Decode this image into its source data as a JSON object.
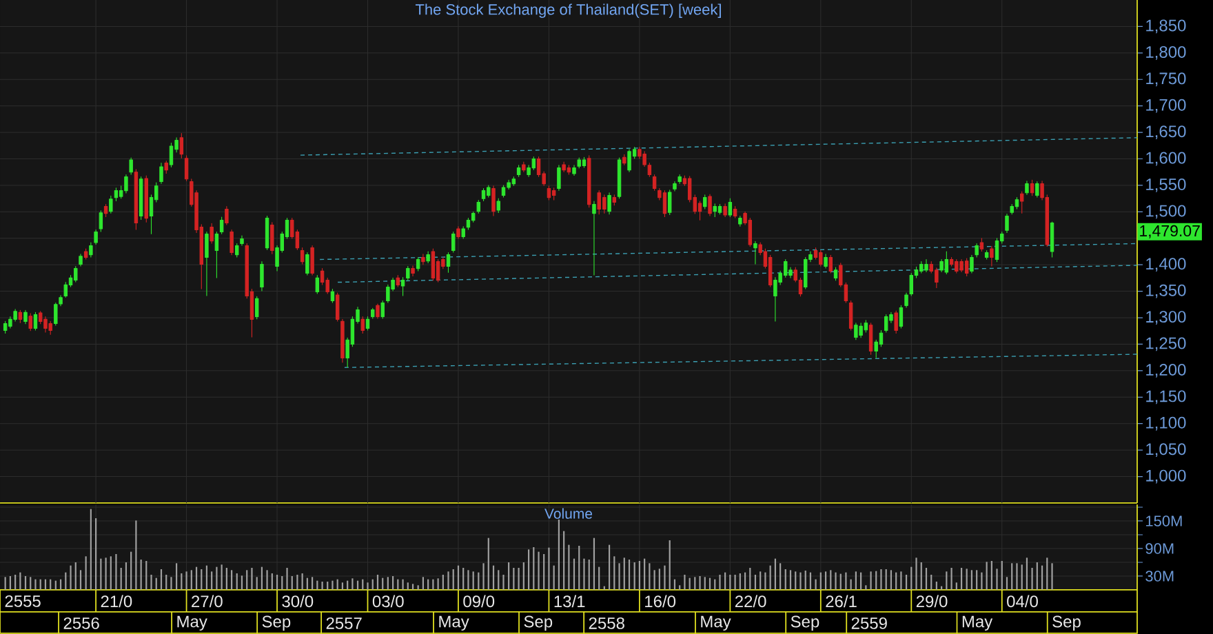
{
  "chart_data": [
    {
      "type": "candlestick",
      "title": "The Stock Exchange of Thailand(SET) [week]",
      "x": [
        2555.71,
        2555.729,
        2555.748,
        2555.767,
        2555.787,
        2555.806,
        2555.825,
        2555.844,
        2555.863,
        2555.882,
        2555.902,
        2555.921,
        2555.94,
        2555.959,
        2555.978,
        2555.997,
        2556.017,
        2556.036,
        2556.055,
        2556.074,
        2556.093,
        2556.112,
        2556.132,
        2556.151,
        2556.17,
        2556.189,
        2556.208,
        2556.227,
        2556.247,
        2556.266,
        2556.285,
        2556.304,
        2556.323,
        2556.342,
        2556.362,
        2556.381,
        2556.4,
        2556.419,
        2556.438,
        2556.457,
        2556.477,
        2556.496,
        2556.515,
        2556.534,
        2556.553,
        2556.572,
        2556.592,
        2556.611,
        2556.63,
        2556.649,
        2556.668,
        2556.687,
        2556.707,
        2556.726,
        2556.745,
        2556.764,
        2556.783,
        2556.802,
        2556.822,
        2556.841,
        2556.86,
        2556.879,
        2556.898,
        2556.917,
        2556.937,
        2556.956,
        2556.975,
        2556.994,
        2557.013,
        2557.032,
        2557.052,
        2557.071,
        2557.09,
        2557.109,
        2557.128,
        2557.147,
        2557.167,
        2557.186,
        2557.205,
        2557.224,
        2557.243,
        2557.262,
        2557.282,
        2557.301,
        2557.32,
        2557.339,
        2557.358,
        2557.377,
        2557.397,
        2557.416,
        2557.435,
        2557.454,
        2557.473,
        2557.492,
        2557.512,
        2557.531,
        2557.55,
        2557.569,
        2557.588,
        2557.607,
        2557.627,
        2557.646,
        2557.665,
        2557.684,
        2557.703,
        2557.722,
        2557.741,
        2557.761,
        2557.78,
        2557.799,
        2557.818,
        2557.837,
        2557.856,
        2557.876,
        2557.895,
        2557.914,
        2557.933,
        2557.952,
        2557.971,
        2557.991,
        2558.01,
        2558.029,
        2558.048,
        2558.067,
        2558.086,
        2558.106,
        2558.125,
        2558.144,
        2558.163,
        2558.182,
        2558.201,
        2558.221,
        2558.24,
        2558.259,
        2558.278,
        2558.297,
        2558.316,
        2558.336,
        2558.355,
        2558.374,
        2558.393,
        2558.412,
        2558.431,
        2558.451,
        2558.47,
        2558.489,
        2558.508,
        2558.527,
        2558.546,
        2558.566,
        2558.585,
        2558.604,
        2558.623,
        2558.642,
        2558.661,
        2558.681,
        2558.7,
        2558.719,
        2558.738,
        2558.757,
        2558.776,
        2558.796,
        2558.815,
        2558.834,
        2558.853,
        2558.872,
        2558.891,
        2558.911,
        2558.93,
        2558.949,
        2558.968,
        2558.987,
        2559.006,
        2559.026,
        2559.045,
        2559.064,
        2559.083,
        2559.102,
        2559.121,
        2559.141,
        2559.16,
        2559.179,
        2559.198,
        2559.217,
        2559.236,
        2559.256,
        2559.275,
        2559.294,
        2559.313,
        2559.332,
        2559.351,
        2559.371,
        2559.39,
        2559.409,
        2559.428,
        2559.447,
        2559.466,
        2559.486,
        2559.505,
        2559.524,
        2559.543,
        2559.562,
        2559.581,
        2559.6,
        2559.62,
        2559.639,
        2559.658,
        2559.677,
        2559.696
      ],
      "ohlc": [
        [
          1276,
          1293,
          1270,
          1289
        ],
        [
          1284,
          1302,
          1280,
          1297
        ],
        [
          1297,
          1316,
          1293,
          1312
        ],
        [
          1310,
          1314,
          1290,
          1297
        ],
        [
          1293,
          1314,
          1288,
          1310
        ],
        [
          1303,
          1308,
          1275,
          1280
        ],
        [
          1280,
          1310,
          1276,
          1306
        ],
        [
          1309,
          1312,
          1288,
          1293
        ],
        [
          1297,
          1302,
          1272,
          1280
        ],
        [
          1289,
          1293,
          1268,
          1276
        ],
        [
          1289,
          1328,
          1285,
          1325
        ],
        [
          1326,
          1342,
          1322,
          1338
        ],
        [
          1341,
          1367,
          1338,
          1362
        ],
        [
          1362,
          1380,
          1358,
          1375
        ],
        [
          1371,
          1397,
          1367,
          1393
        ],
        [
          1401,
          1420,
          1397,
          1416
        ],
        [
          1425,
          1430,
          1410,
          1414
        ],
        [
          1419,
          1442,
          1414,
          1436
        ],
        [
          1442,
          1466,
          1438,
          1462
        ],
        [
          1468,
          1502,
          1462,
          1498
        ],
        [
          1510,
          1514,
          1490,
          1497
        ],
        [
          1501,
          1530,
          1497,
          1524
        ],
        [
          1527,
          1545,
          1520,
          1540
        ],
        [
          1529,
          1549,
          1525,
          1540
        ],
        [
          1540,
          1570,
          1535,
          1566
        ],
        [
          1575,
          1602,
          1570,
          1598
        ],
        [
          1575,
          1580,
          1466,
          1479
        ],
        [
          1492,
          1566,
          1485,
          1562
        ],
        [
          1563,
          1568,
          1480,
          1488
        ],
        [
          1492,
          1532,
          1458,
          1527
        ],
        [
          1523,
          1555,
          1518,
          1549
        ],
        [
          1557,
          1592,
          1553,
          1585
        ],
        [
          1592,
          1596,
          1572,
          1579
        ],
        [
          1589,
          1630,
          1584,
          1624
        ],
        [
          1618,
          1640,
          1612,
          1635
        ],
        [
          1640,
          1648,
          1601,
          1609
        ],
        [
          1601,
          1606,
          1558,
          1562
        ],
        [
          1557,
          1562,
          1510,
          1514
        ],
        [
          1536,
          1540,
          1460,
          1466
        ],
        [
          1471,
          1476,
          1354,
          1401
        ],
        [
          1414,
          1462,
          1341,
          1458
        ],
        [
          1471,
          1478,
          1440,
          1445
        ],
        [
          1427,
          1462,
          1375,
          1458
        ],
        [
          1462,
          1490,
          1458,
          1484
        ],
        [
          1505,
          1510,
          1475,
          1479
        ],
        [
          1462,
          1466,
          1418,
          1423
        ],
        [
          1419,
          1440,
          1414,
          1436
        ],
        [
          1440,
          1455,
          1436,
          1449
        ],
        [
          1436,
          1440,
          1336,
          1341
        ],
        [
          1349,
          1354,
          1263,
          1297
        ],
        [
          1302,
          1340,
          1297,
          1336
        ],
        [
          1358,
          1406,
          1350,
          1401
        ],
        [
          1432,
          1492,
          1428,
          1488
        ],
        [
          1475,
          1480,
          1420,
          1427
        ],
        [
          1397,
          1436,
          1388,
          1432
        ],
        [
          1427,
          1462,
          1423,
          1458
        ],
        [
          1453,
          1488,
          1449,
          1484
        ],
        [
          1484,
          1488,
          1449,
          1453
        ],
        [
          1462,
          1466,
          1428,
          1432
        ],
        [
          1427,
          1432,
          1401,
          1406
        ],
        [
          1384,
          1423,
          1380,
          1419
        ],
        [
          1432,
          1436,
          1380,
          1384
        ],
        [
          1349,
          1380,
          1345,
          1375
        ],
        [
          1388,
          1393,
          1362,
          1367
        ],
        [
          1371,
          1375,
          1345,
          1349
        ],
        [
          1332,
          1354,
          1328,
          1349
        ],
        [
          1343,
          1347,
          1293,
          1297
        ],
        [
          1293,
          1297,
          1215,
          1224
        ],
        [
          1224,
          1262,
          1206,
          1258
        ],
        [
          1250,
          1302,
          1245,
          1297
        ],
        [
          1293,
          1320,
          1289,
          1315
        ],
        [
          1297,
          1302,
          1270,
          1276
        ],
        [
          1280,
          1302,
          1276,
          1297
        ],
        [
          1302,
          1318,
          1298,
          1315
        ],
        [
          1323,
          1326,
          1298,
          1302
        ],
        [
          1302,
          1332,
          1298,
          1328
        ],
        [
          1332,
          1362,
          1328,
          1358
        ],
        [
          1354,
          1375,
          1350,
          1371
        ],
        [
          1375,
          1380,
          1358,
          1362
        ],
        [
          1360,
          1376,
          1341,
          1371
        ],
        [
          1375,
          1397,
          1370,
          1393
        ],
        [
          1393,
          1398,
          1378,
          1384
        ],
        [
          1393,
          1414,
          1388,
          1410
        ],
        [
          1414,
          1420,
          1400,
          1406
        ],
        [
          1407,
          1425,
          1403,
          1419
        ],
        [
          1425,
          1430,
          1370,
          1375
        ],
        [
          1406,
          1410,
          1367,
          1371
        ],
        [
          1410,
          1414,
          1392,
          1397
        ],
        [
          1397,
          1423,
          1385,
          1419
        ],
        [
          1427,
          1462,
          1423,
          1458
        ],
        [
          1468,
          1472,
          1449,
          1453
        ],
        [
          1453,
          1472,
          1449,
          1468
        ],
        [
          1471,
          1488,
          1466,
          1484
        ],
        [
          1484,
          1500,
          1480,
          1497
        ],
        [
          1501,
          1522,
          1497,
          1518
        ],
        [
          1525,
          1544,
          1520,
          1540
        ],
        [
          1531,
          1550,
          1527,
          1546
        ],
        [
          1544,
          1549,
          1492,
          1501
        ],
        [
          1503,
          1525,
          1498,
          1520
        ],
        [
          1531,
          1550,
          1527,
          1546
        ],
        [
          1546,
          1560,
          1542,
          1555
        ],
        [
          1553,
          1566,
          1549,
          1562
        ],
        [
          1570,
          1588,
          1566,
          1583
        ],
        [
          1589,
          1594,
          1575,
          1579
        ],
        [
          1570,
          1588,
          1566,
          1583
        ],
        [
          1583,
          1604,
          1579,
          1600
        ],
        [
          1600,
          1604,
          1566,
          1570
        ],
        [
          1572,
          1576,
          1549,
          1553
        ],
        [
          1544,
          1549,
          1522,
          1527
        ],
        [
          1540,
          1545,
          1522,
          1531
        ],
        [
          1544,
          1588,
          1540,
          1583
        ],
        [
          1589,
          1594,
          1575,
          1579
        ],
        [
          1583,
          1588,
          1570,
          1575
        ],
        [
          1572,
          1588,
          1568,
          1583
        ],
        [
          1586,
          1602,
          1582,
          1598
        ],
        [
          1587,
          1603,
          1583,
          1598
        ],
        [
          1601,
          1606,
          1508,
          1514
        ],
        [
          1497,
          1520,
          1380,
          1514
        ],
        [
          1536,
          1540,
          1495,
          1505
        ],
        [
          1527,
          1532,
          1497,
          1505
        ],
        [
          1501,
          1536,
          1495,
          1531
        ],
        [
          1527,
          1532,
          1512,
          1518
        ],
        [
          1529,
          1602,
          1525,
          1598
        ],
        [
          1603,
          1608,
          1588,
          1592
        ],
        [
          1579,
          1618,
          1575,
          1614
        ],
        [
          1605,
          1622,
          1600,
          1618
        ],
        [
          1618,
          1622,
          1600,
          1605
        ],
        [
          1609,
          1614,
          1585,
          1589
        ],
        [
          1588,
          1592,
          1566,
          1570
        ],
        [
          1566,
          1570,
          1540,
          1544
        ],
        [
          1540,
          1544,
          1522,
          1527
        ],
        [
          1536,
          1540,
          1490,
          1497
        ],
        [
          1499,
          1541,
          1494,
          1537
        ],
        [
          1543,
          1557,
          1539,
          1553
        ],
        [
          1557,
          1570,
          1553,
          1566
        ],
        [
          1563,
          1568,
          1549,
          1553
        ],
        [
          1563,
          1567,
          1518,
          1523
        ],
        [
          1527,
          1532,
          1496,
          1501
        ],
        [
          1516,
          1520,
          1484,
          1501
        ],
        [
          1510,
          1532,
          1505,
          1527
        ],
        [
          1529,
          1533,
          1492,
          1497
        ],
        [
          1501,
          1515,
          1490,
          1510
        ],
        [
          1499,
          1514,
          1495,
          1510
        ],
        [
          1510,
          1515,
          1490,
          1494
        ],
        [
          1494,
          1525,
          1490,
          1518
        ],
        [
          1505,
          1510,
          1488,
          1492
        ],
        [
          1477,
          1492,
          1472,
          1488
        ],
        [
          1497,
          1500,
          1475,
          1479
        ],
        [
          1484,
          1488,
          1434,
          1438
        ],
        [
          1432,
          1444,
          1401,
          1440
        ],
        [
          1438,
          1442,
          1418,
          1423
        ],
        [
          1425,
          1430,
          1393,
          1397
        ],
        [
          1414,
          1418,
          1358,
          1362
        ],
        [
          1341,
          1376,
          1293,
          1371
        ],
        [
          1367,
          1388,
          1362,
          1384
        ],
        [
          1380,
          1410,
          1376,
          1406
        ],
        [
          1380,
          1395,
          1375,
          1390
        ],
        [
          1390,
          1395,
          1367,
          1371
        ],
        [
          1371,
          1375,
          1340,
          1345
        ],
        [
          1358,
          1414,
          1354,
          1410
        ],
        [
          1410,
          1425,
          1405,
          1419
        ],
        [
          1427,
          1432,
          1410,
          1414
        ],
        [
          1423,
          1427,
          1397,
          1401
        ],
        [
          1397,
          1420,
          1393,
          1414
        ],
        [
          1414,
          1418,
          1384,
          1388
        ],
        [
          1375,
          1395,
          1370,
          1390
        ],
        [
          1399,
          1403,
          1358,
          1362
        ],
        [
          1362,
          1366,
          1328,
          1332
        ],
        [
          1328,
          1332,
          1276,
          1280
        ],
        [
          1263,
          1290,
          1258,
          1286
        ],
        [
          1267,
          1290,
          1262,
          1284
        ],
        [
          1277,
          1295,
          1272,
          1290
        ],
        [
          1286,
          1290,
          1230,
          1237
        ],
        [
          1237,
          1258,
          1224,
          1254
        ],
        [
          1250,
          1276,
          1245,
          1271
        ],
        [
          1276,
          1306,
          1272,
          1302
        ],
        [
          1295,
          1310,
          1290,
          1306
        ],
        [
          1309,
          1313,
          1270,
          1276
        ],
        [
          1284,
          1323,
          1280,
          1319
        ],
        [
          1323,
          1347,
          1319,
          1343
        ],
        [
          1345,
          1384,
          1341,
          1380
        ],
        [
          1380,
          1396,
          1375,
          1390
        ],
        [
          1388,
          1406,
          1384,
          1401
        ],
        [
          1390,
          1410,
          1386,
          1401
        ],
        [
          1401,
          1406,
          1384,
          1388
        ],
        [
          1390,
          1394,
          1356,
          1367
        ],
        [
          1390,
          1410,
          1386,
          1406
        ],
        [
          1386,
          1425,
          1382,
          1410
        ],
        [
          1410,
          1414,
          1397,
          1401
        ],
        [
          1406,
          1410,
          1384,
          1388
        ],
        [
          1406,
          1410,
          1386,
          1390
        ],
        [
          1407,
          1412,
          1378,
          1384
        ],
        [
          1388,
          1418,
          1384,
          1414
        ],
        [
          1419,
          1440,
          1414,
          1436
        ],
        [
          1442,
          1450,
          1425,
          1430
        ],
        [
          1414,
          1427,
          1410,
          1423
        ],
        [
          1430,
          1435,
          1397,
          1414
        ],
        [
          1410,
          1450,
          1405,
          1445
        ],
        [
          1445,
          1462,
          1440,
          1458
        ],
        [
          1465,
          1496,
          1460,
          1492
        ],
        [
          1499,
          1514,
          1495,
          1510
        ],
        [
          1510,
          1527,
          1505,
          1523
        ],
        [
          1534,
          1538,
          1497,
          1520
        ],
        [
          1536,
          1558,
          1532,
          1553
        ],
        [
          1553,
          1560,
          1530,
          1536
        ],
        [
          1531,
          1557,
          1527,
          1553
        ],
        [
          1553,
          1558,
          1522,
          1527
        ],
        [
          1527,
          1532,
          1434,
          1438
        ],
        [
          1425,
          1481,
          1414,
          1479.07
        ]
      ],
      "colors": [
        "#2ee62e",
        "#2ee62e",
        "#2ee62e",
        "#d42323",
        "#2ee62e",
        "#d42323",
        "#2ee62e",
        "#d42323",
        "#d42323",
        "#d42323",
        "#2ee62e",
        "#2ee62e",
        "#2ee62e",
        "#2ee62e",
        "#2ee62e",
        "#2ee62e",
        "#d42323",
        "#2ee62e",
        "#2ee62e",
        "#2ee62e",
        "#d42323",
        "#2ee62e",
        "#2ee62e",
        "#2ee62e",
        "#2ee62e",
        "#2ee62e",
        "#d42323",
        "#2ee62e",
        "#d42323",
        "#2ee62e",
        "#2ee62e",
        "#2ee62e",
        "#d42323",
        "#2ee62e",
        "#2ee62e",
        "#d42323",
        "#d42323",
        "#d42323",
        "#d42323",
        "#d42323",
        "#2ee62e",
        "#d42323",
        "#2ee62e",
        "#2ee62e",
        "#d42323",
        "#d42323",
        "#2ee62e",
        "#2ee62e",
        "#d42323",
        "#d42323",
        "#2ee62e",
        "#2ee62e",
        "#2ee62e",
        "#d42323",
        "#2ee62e",
        "#2ee62e",
        "#2ee62e",
        "#d42323",
        "#d42323",
        "#d42323",
        "#2ee62e",
        "#d42323",
        "#2ee62e",
        "#d42323",
        "#d42323",
        "#2ee62e",
        "#d42323",
        "#d42323",
        "#2ee62e",
        "#2ee62e",
        "#2ee62e",
        "#d42323",
        "#2ee62e",
        "#2ee62e",
        "#d42323",
        "#2ee62e",
        "#2ee62e",
        "#2ee62e",
        "#d42323",
        "#2ee62e",
        "#2ee62e",
        "#d42323",
        "#2ee62e",
        "#d42323",
        "#2ee62e",
        "#d42323",
        "#d42323",
        "#d42323",
        "#2ee62e",
        "#2ee62e",
        "#d42323",
        "#2ee62e",
        "#2ee62e",
        "#2ee62e",
        "#2ee62e",
        "#2ee62e",
        "#2ee62e",
        "#d42323",
        "#2ee62e",
        "#2ee62e",
        "#2ee62e",
        "#2ee62e",
        "#2ee62e",
        "#d42323",
        "#2ee62e",
        "#2ee62e",
        "#d42323",
        "#d42323",
        "#d42323",
        "#d42323",
        "#2ee62e",
        "#d42323",
        "#d42323",
        "#2ee62e",
        "#2ee62e",
        "#2ee62e",
        "#d42323",
        "#2ee62e",
        "#d42323",
        "#d42323",
        "#2ee62e",
        "#d42323",
        "#2ee62e",
        "#d42323",
        "#2ee62e",
        "#2ee62e",
        "#d42323",
        "#d42323",
        "#d42323",
        "#d42323",
        "#d42323",
        "#d42323",
        "#2ee62e",
        "#2ee62e",
        "#2ee62e",
        "#d42323",
        "#d42323",
        "#d42323",
        "#d42323",
        "#2ee62e",
        "#d42323",
        "#2ee62e",
        "#2ee62e",
        "#d42323",
        "#2ee62e",
        "#d42323",
        "#2ee62e",
        "#d42323",
        "#d42323",
        "#2ee62e",
        "#d42323",
        "#d42323",
        "#d42323",
        "#2ee62e",
        "#2ee62e",
        "#2ee62e",
        "#2ee62e",
        "#d42323",
        "#d42323",
        "#2ee62e",
        "#2ee62e",
        "#d42323",
        "#d42323",
        "#2ee62e",
        "#d42323",
        "#2ee62e",
        "#d42323",
        "#d42323",
        "#d42323",
        "#2ee62e",
        "#2ee62e",
        "#2ee62e",
        "#d42323",
        "#2ee62e",
        "#2ee62e",
        "#2ee62e",
        "#2ee62e",
        "#d42323",
        "#2ee62e",
        "#2ee62e",
        "#2ee62e",
        "#2ee62e",
        "#2ee62e",
        "#2ee62e",
        "#d42323",
        "#d42323",
        "#2ee62e",
        "#2ee62e",
        "#d42323",
        "#d42323",
        "#d42323",
        "#d42323",
        "#2ee62e",
        "#2ee62e",
        "#d42323",
        "#2ee62e",
        "#d42323",
        "#2ee62e",
        "#2ee62e",
        "#2ee62e",
        "#2ee62e",
        "#2ee62e",
        "#d42323",
        "#2ee62e",
        "#d42323",
        "#2ee62e",
        "#d42323",
        "#d42323",
        "#2ee62e"
      ],
      "series": [
        {
          "type": "line",
          "x": [
            2556.834,
            2560.02
          ],
          "values": [
            1607,
            1640
          ],
          "color": "#3b9fb2",
          "line_style": "dashed"
        },
        {
          "type": "line",
          "x": [
            2556.908,
            2560.02
          ],
          "values": [
            1410,
            1440
          ],
          "color": "#3b9fb2",
          "line_style": "dashed"
        },
        {
          "type": "line",
          "x": [
            2556.976,
            2560.02
          ],
          "values": [
            1367,
            1399
          ],
          "color": "#3b9fb2",
          "line_style": "dashed"
        },
        {
          "type": "line",
          "x": [
            2557.002,
            2560.02
          ],
          "values": [
            1206,
            1231
          ],
          "color": "#3b9fb2",
          "line_style": "dashed"
        }
      ],
      "xlim": [
        2555.69,
        2560.02
      ],
      "tick_labels": "y",
      "ylim": [
        950,
        1900
      ],
      "yticks": [
        {
          "value": 1000,
          "label": "1,000"
        },
        {
          "value": 1050,
          "label": "1,050"
        },
        {
          "value": 1100,
          "label": "1,100"
        },
        {
          "value": 1150,
          "label": "1,150"
        },
        {
          "value": 1200,
          "label": "1,200"
        },
        {
          "value": 1250,
          "label": "1,250"
        },
        {
          "value": 1300,
          "label": "1,300"
        },
        {
          "value": 1350,
          "label": "1,350"
        },
        {
          "value": 1400,
          "label": "1,400"
        },
        {
          "value": 1450,
          "label": null
        },
        {
          "value": 1500,
          "label": "1,500"
        },
        {
          "value": 1550,
          "label": "1,550"
        },
        {
          "value": 1600,
          "label": "1,600"
        },
        {
          "value": 1650,
          "label": "1,650"
        },
        {
          "value": 1700,
          "label": "1,700"
        },
        {
          "value": 1750,
          "label": "1,750"
        },
        {
          "value": 1800,
          "label": "1,800"
        },
        {
          "value": 1850,
          "label": "1,850"
        }
      ],
      "grid": "y",
      "ref_lines": [
        {
          "axis": "x",
          "value": 2556.055,
          "color": "#2e2e2e"
        },
        {
          "axis": "x",
          "value": 2556.4,
          "color": "#2e2e2e"
        },
        {
          "axis": "x",
          "value": 2556.745,
          "color": "#2e2e2e"
        },
        {
          "axis": "x",
          "value": 2557.09,
          "color": "#2e2e2e"
        },
        {
          "axis": "x",
          "value": 2557.435,
          "color": "#2e2e2e"
        },
        {
          "axis": "x",
          "value": 2557.78,
          "color": "#2e2e2e"
        },
        {
          "axis": "x",
          "value": 2558.125,
          "color": "#2e2e2e"
        },
        {
          "axis": "x",
          "value": 2558.47,
          "color": "#2e2e2e"
        },
        {
          "axis": "x",
          "value": 2558.815,
          "color": "#2e2e2e"
        },
        {
          "axis": "x",
          "value": 2559.16,
          "color": "#2e2e2e"
        },
        {
          "axis": "x",
          "value": 2559.505,
          "color": "#2e2e2e"
        }
      ],
      "annotations": [
        "1,479.07"
      ]
    },
    {
      "type": "bar",
      "title": "Volume",
      "x": [
        2555.71,
        2555.729,
        2555.748,
        2555.767,
        2555.787,
        2555.806,
        2555.825,
        2555.844,
        2555.863,
        2555.882,
        2555.902,
        2555.921,
        2555.94,
        2555.959,
        2555.978,
        2555.997,
        2556.017,
        2556.036,
        2556.055,
        2556.074,
        2556.093,
        2556.112,
        2556.132,
        2556.151,
        2556.17,
        2556.189,
        2556.208,
        2556.227,
        2556.247,
        2556.266,
        2556.285,
        2556.304,
        2556.323,
        2556.342,
        2556.362,
        2556.381,
        2556.4,
        2556.419,
        2556.438,
        2556.457,
        2556.477,
        2556.496,
        2556.515,
        2556.534,
        2556.553,
        2556.572,
        2556.592,
        2556.611,
        2556.63,
        2556.649,
        2556.668,
        2556.687,
        2556.707,
        2556.726,
        2556.745,
        2556.764,
        2556.783,
        2556.802,
        2556.822,
        2556.841,
        2556.86,
        2556.879,
        2556.898,
        2556.917,
        2556.937,
        2556.956,
        2556.975,
        2556.994,
        2557.013,
        2557.032,
        2557.052,
        2557.071,
        2557.09,
        2557.109,
        2557.128,
        2557.147,
        2557.167,
        2557.186,
        2557.205,
        2557.224,
        2557.243,
        2557.262,
        2557.282,
        2557.301,
        2557.32,
        2557.339,
        2557.358,
        2557.377,
        2557.397,
        2557.416,
        2557.435,
        2557.454,
        2557.473,
        2557.492,
        2557.512,
        2557.531,
        2557.55,
        2557.569,
        2557.588,
        2557.607,
        2557.627,
        2557.646,
        2557.665,
        2557.684,
        2557.703,
        2557.722,
        2557.741,
        2557.761,
        2557.78,
        2557.799,
        2557.818,
        2557.837,
        2557.856,
        2557.876,
        2557.895,
        2557.914,
        2557.933,
        2557.952,
        2557.971,
        2557.991,
        2558.01,
        2558.029,
        2558.048,
        2558.067,
        2558.086,
        2558.106,
        2558.125,
        2558.144,
        2558.163,
        2558.182,
        2558.201,
        2558.221,
        2558.24,
        2558.259,
        2558.278,
        2558.297,
        2558.316,
        2558.336,
        2558.355,
        2558.374,
        2558.393,
        2558.412,
        2558.431,
        2558.451,
        2558.47,
        2558.489,
        2558.508,
        2558.527,
        2558.546,
        2558.566,
        2558.585,
        2558.604,
        2558.623,
        2558.642,
        2558.661,
        2558.681,
        2558.7,
        2558.719,
        2558.738,
        2558.757,
        2558.776,
        2558.796,
        2558.815,
        2558.834,
        2558.853,
        2558.872,
        2558.891,
        2558.911,
        2558.93,
        2558.949,
        2558.968,
        2558.987,
        2559.006,
        2559.026,
        2559.045,
        2559.064,
        2559.083,
        2559.102,
        2559.121,
        2559.141,
        2559.16,
        2559.179,
        2559.198,
        2559.217,
        2559.236,
        2559.256,
        2559.275,
        2559.294,
        2559.313,
        2559.332,
        2559.351,
        2559.371,
        2559.39,
        2559.409,
        2559.428,
        2559.447,
        2559.466,
        2559.486,
        2559.505,
        2559.524,
        2559.543,
        2559.562,
        2559.581,
        2559.6,
        2559.62,
        2559.639,
        2559.658,
        2559.677,
        2559.696
      ],
      "values": [
        28,
        30,
        33,
        38,
        30,
        28,
        23,
        23,
        23,
        23,
        20,
        23,
        38,
        53,
        60,
        43,
        73,
        176,
        156,
        68,
        70,
        73,
        78,
        48,
        60,
        83,
        151,
        66,
        63,
        33,
        26,
        45,
        33,
        28,
        58,
        36,
        40,
        43,
        50,
        45,
        53,
        40,
        50,
        55,
        48,
        43,
        36,
        31,
        43,
        48,
        28,
        50,
        43,
        36,
        33,
        30,
        48,
        30,
        33,
        36,
        26,
        28,
        20,
        18,
        18,
        20,
        23,
        16,
        20,
        25,
        20,
        23,
        16,
        23,
        33,
        26,
        28,
        30,
        23,
        23,
        16,
        13,
        10,
        28,
        23,
        23,
        25,
        33,
        40,
        45,
        53,
        48,
        43,
        40,
        38,
        58,
        113,
        53,
        43,
        33,
        60,
        48,
        48,
        60,
        88,
        93,
        83,
        78,
        92,
        53,
        153,
        128,
        98,
        68,
        96,
        68,
        66,
        113,
        50,
        8,
        98,
        73,
        58,
        70,
        66,
        60,
        63,
        68,
        58,
        43,
        46,
        53,
        108,
        23,
        10,
        33,
        26,
        28,
        30,
        28,
        26,
        23,
        33,
        38,
        33,
        33,
        36,
        38,
        48,
        33,
        40,
        38,
        53,
        68,
        58,
        45,
        43,
        40,
        38,
        42,
        38,
        23,
        38,
        40,
        43,
        38,
        35,
        38,
        23,
        40,
        38,
        10,
        40,
        41,
        45,
        45,
        43,
        38,
        40,
        33,
        50,
        70,
        60,
        48,
        33,
        18,
        8,
        40,
        48,
        16,
        48,
        46,
        43,
        43,
        38,
        61,
        63,
        46,
        63,
        28,
        58,
        58,
        55,
        70,
        48,
        60,
        53,
        70,
        58
      ],
      "color": "#a0a0a0",
      "xlim": [
        2555.69,
        2560.02
      ],
      "xticks": [
        2556,
        {
          "value": 2556.42,
          "label": "May"
        },
        {
          "value": 2556.742,
          "label": "Sep"
        },
        2557,
        {
          "value": 2557.417,
          "label": "May"
        },
        {
          "value": 2557.739,
          "label": "Sep"
        },
        2558,
        {
          "value": 2558.414,
          "label": "May"
        },
        {
          "value": 2558.755,
          "label": "Sep"
        },
        2559,
        {
          "value": 2559.41,
          "label": "May"
        },
        {
          "value": 2559.751,
          "label": "Sep"
        }
      ],
      "ylim": [
        0,
        186
      ],
      "yticks": [
        {
          "value": 30,
          "label": "30M"
        },
        {
          "value": 60,
          "label": null
        },
        {
          "value": 90,
          "label": "90M"
        },
        {
          "value": 120,
          "label": null
        },
        {
          "value": 150,
          "label": "150M"
        },
        {
          "value": 180,
          "label": null
        }
      ],
      "grid": "y",
      "ref_lines": [
        {
          "axis": "x",
          "value": 2556.055,
          "color": "#2e2e2e"
        },
        {
          "axis": "x",
          "value": 2556.4,
          "color": "#2e2e2e"
        },
        {
          "axis": "x",
          "value": 2556.745,
          "color": "#2e2e2e"
        },
        {
          "axis": "x",
          "value": 2557.09,
          "color": "#2e2e2e"
        },
        {
          "axis": "x",
          "value": 2557.435,
          "color": "#2e2e2e"
        },
        {
          "axis": "x",
          "value": 2557.78,
          "color": "#2e2e2e"
        },
        {
          "axis": "x",
          "value": 2558.125,
          "color": "#2e2e2e"
        },
        {
          "axis": "x",
          "value": 2558.47,
          "color": "#2e2e2e"
        },
        {
          "axis": "x",
          "value": 2558.815,
          "color": "#2e2e2e"
        },
        {
          "axis": "x",
          "value": 2559.16,
          "color": "#2e2e2e"
        },
        {
          "axis": "x",
          "value": 2559.505,
          "color": "#2e2e2e"
        }
      ],
      "annotations": [
        {
          "text": "2555"
        },
        "21/0",
        "27/0",
        "30/0",
        "03/0",
        "09/0",
        "13/1",
        "16/0",
        "22/0",
        "26/1",
        "29/0",
        "04/0"
      ]
    }
  ]
}
